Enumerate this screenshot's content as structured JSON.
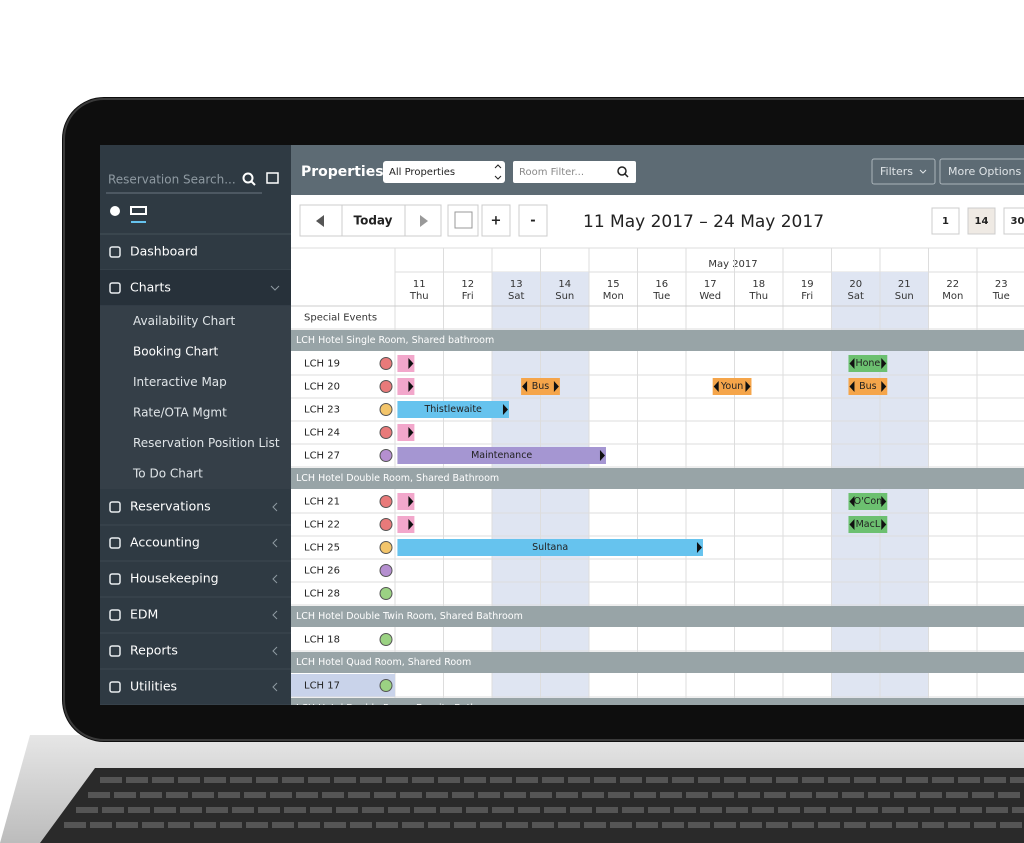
{
  "sidebar": {
    "search_placeholder": "Reservation Search...",
    "menu": [
      {
        "label": "Dashboard"
      },
      {
        "label": "Charts",
        "children": [
          "Availability Chart",
          "Booking Chart",
          "Interactive Map",
          "Rate/OTA Mgmt",
          "Reservation Position List",
          "To Do Chart"
        ]
      },
      {
        "label": "Reservations"
      },
      {
        "label": "Accounting"
      },
      {
        "label": "Housekeeping"
      },
      {
        "label": "EDM"
      },
      {
        "label": "Reports"
      },
      {
        "label": "Utilities"
      }
    ]
  },
  "toolbar": {
    "properties_label": "Properties:",
    "properties_select": "All Properties",
    "room_filter": "Room Filter...",
    "filters": "Filters",
    "more_options": "More Options"
  },
  "navigation": {
    "today": "Today",
    "plus": "+",
    "minus": "-",
    "date_range": "11 May 2017 – 24 May 2017",
    "views": [
      "1",
      "14",
      "30"
    ]
  },
  "calendar": {
    "month": "May 2017",
    "days": [
      {
        "date": "11",
        "weekday": "Thu"
      },
      {
        "date": "12",
        "weekday": "Fri"
      },
      {
        "date": "13",
        "weekday": "Sat"
      },
      {
        "date": "14",
        "weekday": "Sun"
      },
      {
        "date": "15",
        "weekday": "Mon"
      },
      {
        "date": "16",
        "weekday": "Tue"
      },
      {
        "date": "17",
        "weekday": "Wed"
      },
      {
        "date": "18",
        "weekday": "Thu"
      },
      {
        "date": "19",
        "weekday": "Fri"
      },
      {
        "date": "20",
        "weekday": "Sat"
      },
      {
        "date": "21",
        "weekday": "Sun"
      },
      {
        "date": "22",
        "weekday": "Mon"
      },
      {
        "date": "23",
        "weekday": "Tue"
      }
    ],
    "special_events": "Special Events",
    "groups": [
      {
        "name": "LCH Hotel Single Room, Shared bathroom",
        "rooms": [
          {
            "name": "LCH 19",
            "status_color": "#e87a7a",
            "bookings": [
              "Hone"
            ]
          },
          {
            "name": "LCH 20",
            "status_color": "#e87a7a",
            "bookings": [
              "Bus",
              "Youn",
              "Bus"
            ]
          },
          {
            "name": "LCH 23",
            "status_color": "#f3c56b",
            "bookings": [
              "Thistlewaite"
            ]
          },
          {
            "name": "LCH 24",
            "status_color": "#e87a7a",
            "bookings": []
          },
          {
            "name": "LCH 27",
            "status_color": "#b58fd0",
            "bookings": [
              "Maintenance"
            ]
          }
        ]
      },
      {
        "name": "LCH Hotel Double Room, Shared Bathroom",
        "rooms": [
          {
            "name": "LCH 21",
            "status_color": "#e87a7a",
            "bookings": [
              "O'Con"
            ]
          },
          {
            "name": "LCH 22",
            "status_color": "#e87a7a",
            "bookings": [
              "MacL"
            ]
          },
          {
            "name": "LCH 25",
            "status_color": "#f3c56b",
            "bookings": [
              "Sultana"
            ]
          },
          {
            "name": "LCH 26",
            "status_color": "#b58fd0",
            "bookings": []
          },
          {
            "name": "LCH 28",
            "status_color": "#9bd283",
            "bookings": []
          }
        ]
      },
      {
        "name": "LCH Hotel Double Twin Room, Shared Bathroom",
        "rooms": [
          {
            "name": "LCH 18",
            "status_color": "#9bd283",
            "bookings": []
          }
        ]
      },
      {
        "name": "LCH Hotel Quad Room, Shared Room",
        "rooms": [
          {
            "name": "LCH 17",
            "status_color": "#9bd283",
            "bookings": []
          }
        ]
      },
      {
        "name": "LCH Hotel Double Room, Ensuite Bathroom",
        "rooms": []
      }
    ]
  }
}
